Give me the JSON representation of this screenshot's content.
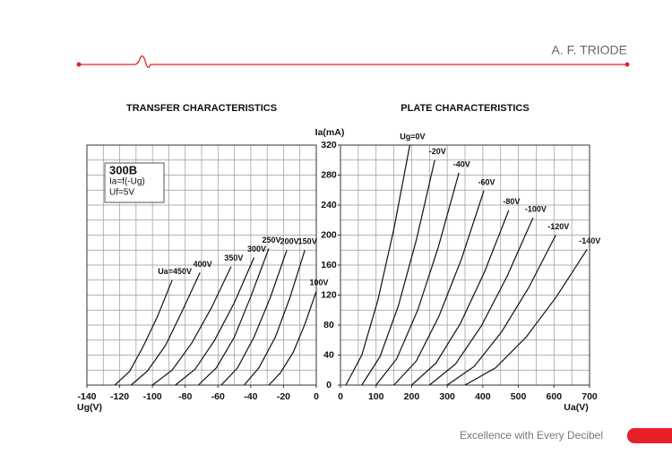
{
  "header": {
    "title": "A. F. TRIODE"
  },
  "chart_data": [
    {
      "type": "line",
      "title": "TRANSFER CHARACTERISTICS",
      "xlabel": "Ug(V)",
      "annotation": [
        "300B",
        "Ia=f(-Ug)",
        "Uf=5V"
      ],
      "xlim": [
        -140,
        0
      ],
      "ylim": [
        0,
        320
      ],
      "xticks": [
        -140,
        -120,
        -100,
        -80,
        -60,
        -40,
        -20,
        0
      ],
      "xgrid": [
        -140,
        -130,
        -120,
        -110,
        -100,
        -90,
        -80,
        -70,
        -60,
        -50,
        -40,
        -30,
        -20,
        -10,
        0
      ],
      "ygrid": [
        0,
        20,
        40,
        60,
        80,
        100,
        120,
        140,
        160,
        180,
        200,
        220,
        240,
        260,
        280,
        300,
        320
      ],
      "color": "#111111",
      "series": [
        {
          "name": "Ua=450V",
          "x": [
            -123,
            -114,
            -106,
            -97,
            -88
          ],
          "values": [
            0,
            18,
            50,
            91,
            140
          ]
        },
        {
          "name": "400V",
          "x": [
            -113,
            -103,
            -92,
            -82,
            -71
          ],
          "values": [
            0,
            19,
            53,
            98,
            150
          ]
        },
        {
          "name": "350V",
          "x": [
            -100,
            -88,
            -76,
            -64,
            -52
          ],
          "values": [
            0,
            20,
            56,
            103,
            158
          ]
        },
        {
          "name": "300V",
          "x": [
            -86,
            -74,
            -62,
            -50,
            -38
          ],
          "values": [
            0,
            21,
            60,
            110,
            170
          ]
        },
        {
          "name": "250V",
          "x": [
            -72,
            -61,
            -50,
            -40,
            -29
          ],
          "values": [
            0,
            23,
            64,
            118,
            182
          ]
        },
        {
          "name": "200V",
          "x": [
            -58,
            -48,
            -38,
            -28,
            -18
          ],
          "values": [
            0,
            23,
            64,
            117,
            180
          ]
        },
        {
          "name": "150V",
          "x": [
            -44,
            -35,
            -25,
            -16,
            -7
          ],
          "values": [
            0,
            23,
            64,
            117,
            180
          ]
        },
        {
          "name": "100V",
          "x": [
            -29,
            -22,
            -14,
            -7,
            0
          ],
          "values": [
            0,
            16,
            44,
            81,
            125
          ]
        }
      ]
    },
    {
      "type": "line",
      "title": "PLATE CHARACTERISTICS",
      "xlabel": "Ua(V)",
      "ylabel": "Ia(mA)",
      "xlim": [
        0,
        700
      ],
      "ylim": [
        0,
        320
      ],
      "xticks": [
        0,
        100,
        200,
        300,
        400,
        500,
        600,
        700
      ],
      "yticks": [
        0,
        40,
        80,
        120,
        160,
        200,
        240,
        280,
        320
      ],
      "xgrid": [
        0,
        50,
        100,
        150,
        200,
        250,
        300,
        350,
        400,
        450,
        500,
        550,
        600,
        650,
        700
      ],
      "ygrid": [
        0,
        20,
        40,
        60,
        80,
        100,
        120,
        140,
        160,
        180,
        200,
        220,
        240,
        260,
        280,
        300,
        320
      ],
      "color": "#111111",
      "series": [
        {
          "name": "Ug=0V",
          "x": [
            15,
            60,
            105,
            150,
            195
          ],
          "values": [
            0,
            40,
            113,
            208,
            320
          ]
        },
        {
          "name": "-20V",
          "x": [
            60,
            111,
            163,
            214,
            265
          ],
          "values": [
            0,
            38,
            106,
            195,
            300
          ]
        },
        {
          "name": "-40V",
          "x": [
            100,
            158,
            217,
            275,
            333
          ],
          "values": [
            0,
            35,
            100,
            184,
            283
          ]
        },
        {
          "name": "-60V",
          "x": [
            150,
            213,
            277,
            340,
            403
          ],
          "values": [
            0,
            32,
            92,
            168,
            259
          ]
        },
        {
          "name": "-80V",
          "x": [
            200,
            268,
            337,
            405,
            473
          ],
          "values": [
            0,
            29,
            82,
            151,
            233
          ]
        },
        {
          "name": "-100V",
          "x": [
            250,
            323,
            396,
            468,
            541
          ],
          "values": [
            0,
            28,
            79,
            145,
            223
          ]
        },
        {
          "name": "-120V",
          "x": [
            300,
            376,
            453,
            529,
            605
          ],
          "values": [
            0,
            25,
            71,
            130,
            200
          ]
        },
        {
          "name": "-140V",
          "x": [
            350,
            436,
            522,
            607,
            693
          ],
          "values": [
            0,
            23,
            64,
            118,
            181
          ]
        }
      ]
    }
  ],
  "footer": {
    "tagline": "Excellence with Every Decibel"
  }
}
